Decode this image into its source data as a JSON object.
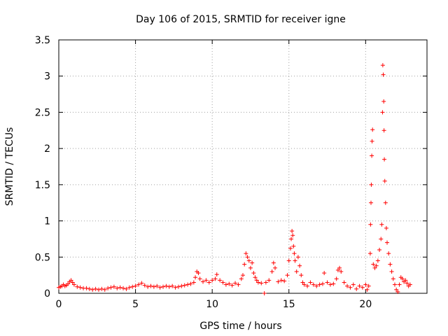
{
  "chart_data": {
    "type": "scatter",
    "title": "Day 106 of 2015, SRMTID for receiver igne",
    "xlabel": "GPS time / hours",
    "ylabel": "SRMTID / TECUs",
    "xlim": [
      0,
      24
    ],
    "ylim": [
      0,
      3.5
    ],
    "xticks": [
      0,
      5,
      10,
      15,
      20
    ],
    "yticks": [
      0,
      0.5,
      1,
      1.5,
      2,
      2.5,
      3,
      3.5
    ],
    "grid": true,
    "marker": "+",
    "color": "#ff0000",
    "series": [
      {
        "name": "igne",
        "points": [
          [
            0.0,
            0.08
          ],
          [
            0.1,
            0.09
          ],
          [
            0.2,
            0.1
          ],
          [
            0.3,
            0.12
          ],
          [
            0.4,
            0.1
          ],
          [
            0.5,
            0.11
          ],
          [
            0.6,
            0.13
          ],
          [
            0.7,
            0.16
          ],
          [
            0.8,
            0.18
          ],
          [
            0.9,
            0.15
          ],
          [
            1.0,
            0.12
          ],
          [
            1.2,
            0.09
          ],
          [
            1.4,
            0.08
          ],
          [
            1.6,
            0.07
          ],
          [
            1.8,
            0.07
          ],
          [
            2.0,
            0.06
          ],
          [
            2.2,
            0.05
          ],
          [
            2.4,
            0.06
          ],
          [
            2.6,
            0.05
          ],
          [
            2.8,
            0.06
          ],
          [
            3.0,
            0.05
          ],
          [
            3.2,
            0.07
          ],
          [
            3.4,
            0.08
          ],
          [
            3.6,
            0.09
          ],
          [
            3.8,
            0.07
          ],
          [
            4.0,
            0.08
          ],
          [
            4.2,
            0.07
          ],
          [
            4.4,
            0.06
          ],
          [
            4.6,
            0.08
          ],
          [
            4.8,
            0.09
          ],
          [
            5.0,
            0.1
          ],
          [
            5.2,
            0.12
          ],
          [
            5.4,
            0.14
          ],
          [
            5.6,
            0.11
          ],
          [
            5.8,
            0.09
          ],
          [
            6.0,
            0.1
          ],
          [
            6.2,
            0.09
          ],
          [
            6.4,
            0.1
          ],
          [
            6.6,
            0.08
          ],
          [
            6.8,
            0.09
          ],
          [
            7.0,
            0.1
          ],
          [
            7.2,
            0.09
          ],
          [
            7.4,
            0.1
          ],
          [
            7.6,
            0.08
          ],
          [
            7.8,
            0.09
          ],
          [
            8.0,
            0.1
          ],
          [
            8.2,
            0.11
          ],
          [
            8.4,
            0.12
          ],
          [
            8.6,
            0.13
          ],
          [
            8.8,
            0.15
          ],
          [
            8.9,
            0.22
          ],
          [
            9.0,
            0.3
          ],
          [
            9.1,
            0.28
          ],
          [
            9.2,
            0.2
          ],
          [
            9.4,
            0.16
          ],
          [
            9.6,
            0.18
          ],
          [
            9.8,
            0.15
          ],
          [
            10.0,
            0.18
          ],
          [
            10.2,
            0.2
          ],
          [
            10.3,
            0.26
          ],
          [
            10.5,
            0.18
          ],
          [
            10.7,
            0.15
          ],
          [
            10.9,
            0.12
          ],
          [
            11.1,
            0.13
          ],
          [
            11.3,
            0.11
          ],
          [
            11.5,
            0.14
          ],
          [
            11.7,
            0.12
          ],
          [
            11.9,
            0.2
          ],
          [
            12.0,
            0.25
          ],
          [
            12.1,
            0.4
          ],
          [
            12.2,
            0.55
          ],
          [
            12.3,
            0.5
          ],
          [
            12.4,
            0.45
          ],
          [
            12.5,
            0.35
          ],
          [
            12.6,
            0.42
          ],
          [
            12.7,
            0.28
          ],
          [
            12.8,
            0.22
          ],
          [
            12.9,
            0.18
          ],
          [
            13.0,
            0.15
          ],
          [
            13.2,
            0.14
          ],
          [
            13.4,
            0.0
          ],
          [
            13.5,
            0.15
          ],
          [
            13.7,
            0.18
          ],
          [
            13.9,
            0.3
          ],
          [
            14.0,
            0.42
          ],
          [
            14.1,
            0.35
          ],
          [
            14.3,
            0.16
          ],
          [
            14.5,
            0.18
          ],
          [
            14.7,
            0.17
          ],
          [
            14.9,
            0.25
          ],
          [
            15.0,
            0.45
          ],
          [
            15.1,
            0.62
          ],
          [
            15.15,
            0.75
          ],
          [
            15.2,
            0.86
          ],
          [
            15.25,
            0.8
          ],
          [
            15.3,
            0.65
          ],
          [
            15.35,
            0.55
          ],
          [
            15.4,
            0.45
          ],
          [
            15.5,
            0.3
          ],
          [
            15.6,
            0.5
          ],
          [
            15.7,
            0.38
          ],
          [
            15.8,
            0.25
          ],
          [
            15.9,
            0.15
          ],
          [
            16.0,
            0.12
          ],
          [
            16.2,
            0.1
          ],
          [
            16.4,
            0.15
          ],
          [
            16.6,
            0.12
          ],
          [
            16.8,
            0.1
          ],
          [
            17.0,
            0.12
          ],
          [
            17.2,
            0.13
          ],
          [
            17.3,
            0.28
          ],
          [
            17.5,
            0.15
          ],
          [
            17.7,
            0.12
          ],
          [
            17.9,
            0.13
          ],
          [
            18.1,
            0.2
          ],
          [
            18.2,
            0.32
          ],
          [
            18.3,
            0.35
          ],
          [
            18.4,
            0.3
          ],
          [
            18.6,
            0.15
          ],
          [
            18.8,
            0.1
          ],
          [
            19.0,
            0.08
          ],
          [
            19.2,
            0.12
          ],
          [
            19.4,
            0.06
          ],
          [
            19.6,
            0.1
          ],
          [
            19.8,
            0.08
          ],
          [
            20.0,
            0.12
          ],
          [
            20.1,
            0.05
          ],
          [
            20.2,
            0.1
          ],
          [
            20.3,
            0.55
          ],
          [
            20.32,
            0.95
          ],
          [
            20.35,
            1.25
          ],
          [
            20.37,
            1.5
          ],
          [
            20.4,
            1.9
          ],
          [
            20.42,
            2.1
          ],
          [
            20.45,
            2.26
          ],
          [
            20.5,
            0.4
          ],
          [
            20.6,
            0.35
          ],
          [
            20.7,
            0.38
          ],
          [
            20.8,
            0.45
          ],
          [
            20.9,
            0.6
          ],
          [
            21.0,
            0.75
          ],
          [
            21.05,
            0.95
          ],
          [
            21.1,
            2.5
          ],
          [
            21.12,
            3.15
          ],
          [
            21.15,
            3.02
          ],
          [
            21.18,
            2.65
          ],
          [
            21.2,
            2.25
          ],
          [
            21.22,
            1.85
          ],
          [
            21.25,
            1.55
          ],
          [
            21.3,
            1.25
          ],
          [
            21.35,
            0.9
          ],
          [
            21.4,
            0.7
          ],
          [
            21.5,
            0.55
          ],
          [
            21.6,
            0.4
          ],
          [
            21.7,
            0.3
          ],
          [
            21.8,
            0.2
          ],
          [
            21.9,
            0.12
          ],
          [
            22.0,
            0.05
          ],
          [
            22.1,
            0.02
          ],
          [
            22.2,
            0.12
          ],
          [
            22.3,
            0.22
          ],
          [
            22.4,
            0.2
          ],
          [
            22.5,
            0.16
          ],
          [
            22.6,
            0.18
          ],
          [
            22.7,
            0.14
          ],
          [
            22.8,
            0.1
          ],
          [
            22.9,
            0.12
          ]
        ]
      }
    ]
  }
}
